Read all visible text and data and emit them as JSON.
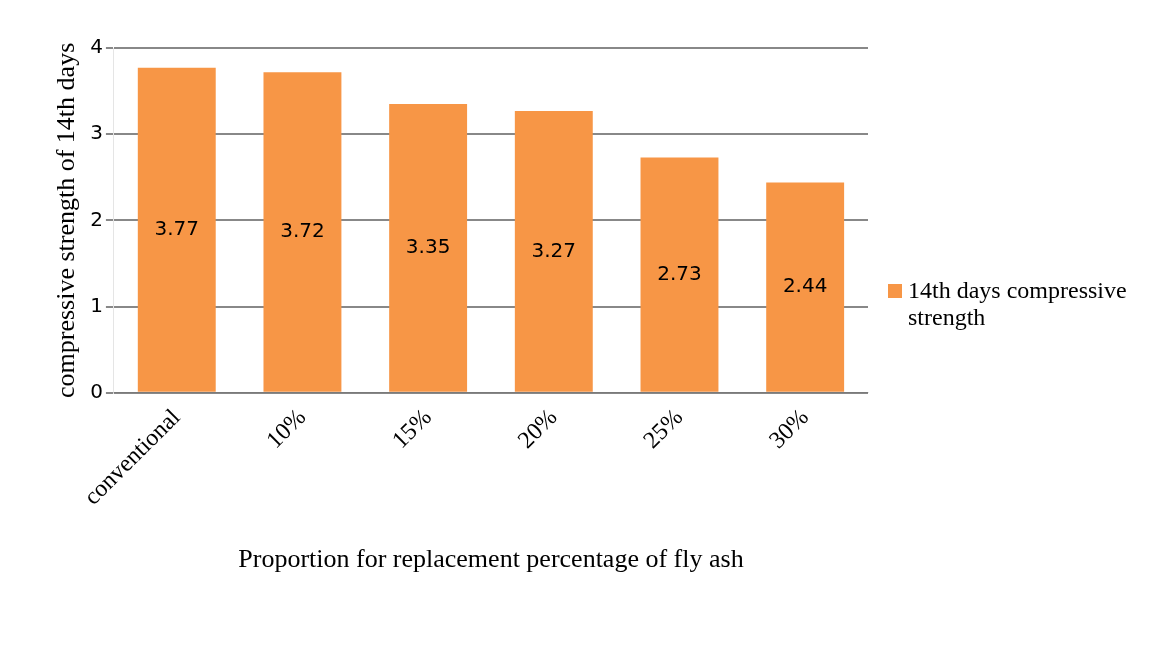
{
  "chart_data": {
    "type": "bar",
    "xlabel": "Proportion for replacement percentage of fly ash",
    "ylabel": "compressive strength of 14th days",
    "categories": [
      "conventional",
      "10%",
      "15%",
      "20%",
      "25%",
      "30%"
    ],
    "series": [
      {
        "name": "14th days compressive strength",
        "color": "#f79646",
        "values": [
          3.77,
          3.72,
          3.35,
          3.27,
          2.73,
          2.44
        ]
      }
    ],
    "ylim": [
      0,
      4
    ],
    "yticks": [
      0,
      1,
      2,
      3,
      4
    ],
    "grid": "y",
    "legend": "right",
    "data_labels": true
  }
}
